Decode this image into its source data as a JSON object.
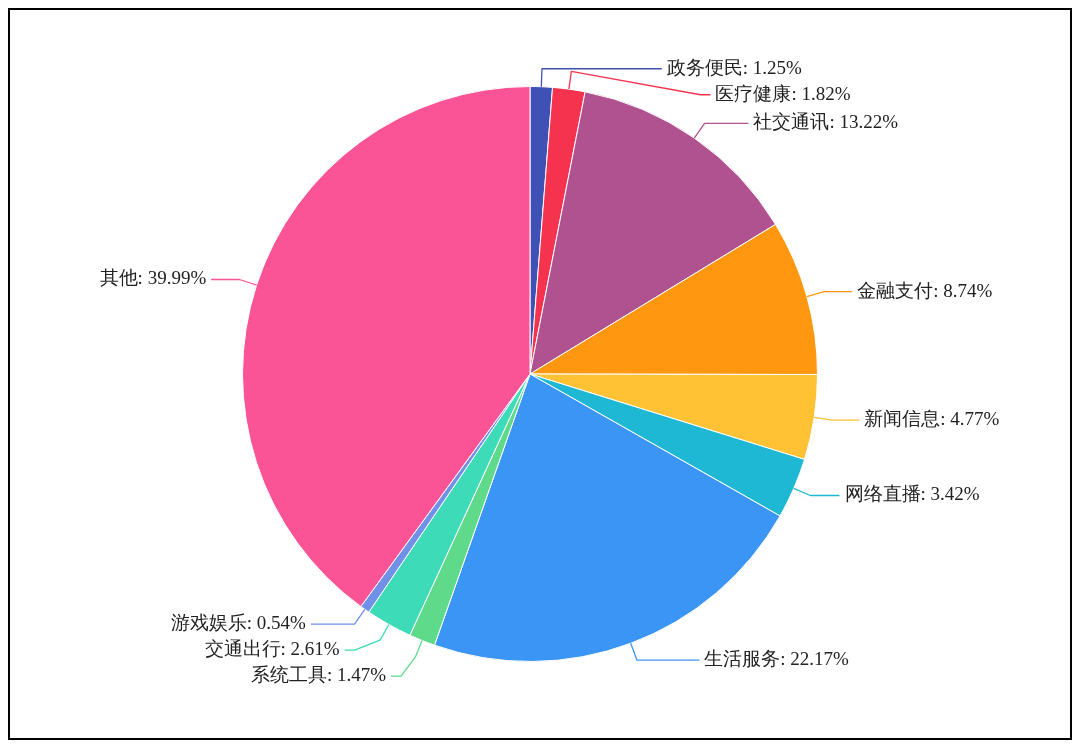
{
  "chart_data": {
    "type": "pie",
    "categories": [
      "政务便民",
      "医疗健康",
      "社交通讯",
      "金融支付",
      "新闻信息",
      "网络直播",
      "生活服务",
      "系统工具",
      "交通出行",
      "游戏娱乐",
      "其他"
    ],
    "values": [
      1.25,
      1.82,
      13.22,
      8.74,
      4.77,
      3.42,
      22.17,
      1.47,
      2.61,
      0.54,
      39.99
    ],
    "value_labels": [
      "1.25%",
      "1.82%",
      "13.22%",
      "8.74%",
      "4.77%",
      "3.42%",
      "22.17%",
      "1.47%",
      "2.61%",
      "0.54%",
      "39.99%"
    ],
    "colors": [
      "#3f51b5",
      "#f5334f",
      "#b0528f",
      "#ff9810",
      "#ffc234",
      "#1fb8d4",
      "#3a95f5",
      "#5fd98a",
      "#3ddbb7",
      "#7190e8",
      "#fa5496"
    ]
  }
}
